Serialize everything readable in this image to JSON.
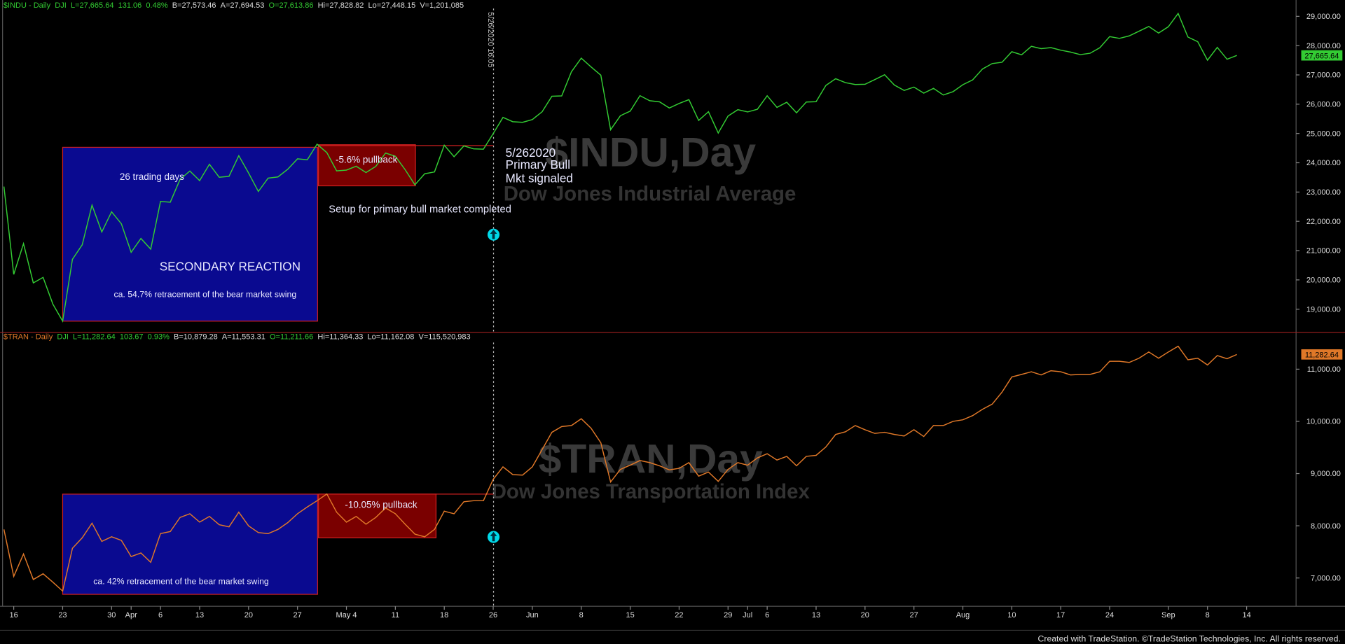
{
  "chart_data": [
    {
      "type": "line",
      "header": [
        "$INDU - Daily",
        "DJI",
        "L=27,665.64",
        "131.06",
        "0.48%",
        "B=27,573.46",
        "A=27,694.53",
        "O=27,613.86",
        "Hi=27,828.82",
        "Lo=27,448.15",
        "V=1,201,085"
      ],
      "watermark_title": "$INDU,Day",
      "watermark_subtitle": "Dow Jones Industrial Average",
      "color": "#33cc33",
      "values": [
        23186,
        20189,
        21237,
        19899,
        20087,
        19174,
        18592,
        20704,
        21200,
        22552,
        21637,
        22327,
        21917,
        20944,
        21413,
        21052,
        22680,
        22654,
        23434,
        23719,
        23390,
        23949,
        23504,
        23538,
        24242,
        23650,
        23019,
        23475,
        23516,
        23775,
        24134,
        24101,
        24634,
        24346,
        23724,
        23750,
        23883,
        23665,
        23875,
        24331,
        24222,
        23765,
        23248,
        23625,
        23685,
        24597,
        24207,
        24576,
        24475,
        24465,
        24995,
        25548,
        25401,
        25383,
        25475,
        25743,
        26270,
        26282,
        27111,
        27572,
        27273,
        26990,
        25128,
        25606,
        25763,
        26290,
        26120,
        26080,
        25871,
        26025,
        26156,
        25446,
        25745,
        25016,
        25596,
        25813,
        25735,
        25827,
        26287,
        25890,
        26067,
        25706,
        26075,
        26086,
        26643,
        26870,
        26735,
        26672,
        26681,
        26840,
        27006,
        26653,
        26470,
        26585,
        26380,
        26540,
        26314,
        26428,
        26665,
        26828,
        27202,
        27387,
        27433,
        27791,
        27687,
        27977,
        27897,
        27931,
        27845,
        27779,
        27693,
        27740,
        27930,
        28308,
        28249,
        28332,
        28493,
        28654,
        28430,
        28646,
        29100,
        28293,
        28133,
        27501,
        27941,
        27535,
        27665.64,
        null
      ],
      "last_value": 27665.64,
      "last_label": "27,665.64",
      "ylim": [
        18270,
        29470
      ],
      "yticks": [
        {
          "value": 19000,
          "label": "19,000.00"
        },
        {
          "value": 20000,
          "label": "20,000.00"
        },
        {
          "value": 21000,
          "label": "21,000.00"
        },
        {
          "value": 22000,
          "label": "22,000.00"
        },
        {
          "value": 23000,
          "label": "23,000.00"
        },
        {
          "value": 24000,
          "label": "24,000.00"
        },
        {
          "value": 25000,
          "label": "25,000.00"
        },
        {
          "value": 26000,
          "label": "26,000.00"
        },
        {
          "value": 27000,
          "label": "27,000.00"
        },
        {
          "value": 28000,
          "label": "28,000.00"
        },
        {
          "value": 29000,
          "label": "29,000.00"
        }
      ],
      "annotations": {
        "days": "26 trading days",
        "reaction": "SECONDARY REACTION",
        "retracement": "ca. 54.7% retracement of the bear market swing",
        "pullback": "-5.6% pullback",
        "signal": [
          "5/262020",
          "Primary Bull",
          "Mkt signaled"
        ],
        "setup": "Setup for primary bull market completed",
        "timestamp": "5/26/2020 16:05"
      }
    },
    {
      "type": "line",
      "header": [
        "$TRAN - Daily",
        "DJI",
        "L=11,282.64",
        "103.67",
        "0.93%",
        "B=10,879.28",
        "A=11,553.31",
        "O=11,211.66",
        "Hi=11,364.33",
        "Lo=11,162.08",
        "V=115,520,983"
      ],
      "watermark_title": "$TRAN,Day",
      "watermark_subtitle": "Dow Jones Transportation Index",
      "color": "#e07828",
      "categories": [
        null,
        "16",
        null,
        null,
        null,
        null,
        "23",
        null,
        null,
        null,
        null,
        "30",
        null,
        "Apr",
        null,
        null,
        "6",
        null,
        null,
        null,
        "13",
        null,
        null,
        null,
        null,
        "20",
        null,
        null,
        null,
        null,
        "27",
        null,
        null,
        null,
        null,
        "May 4",
        null,
        null,
        null,
        null,
        "11",
        null,
        null,
        null,
        null,
        "18",
        null,
        null,
        null,
        null,
        "26",
        null,
        null,
        null,
        "Jun",
        null,
        null,
        null,
        null,
        "8",
        null,
        null,
        null,
        null,
        "15",
        null,
        null,
        null,
        null,
        "22",
        null,
        null,
        null,
        null,
        "29",
        null,
        "Jul",
        null,
        "6",
        null,
        null,
        null,
        null,
        "13",
        null,
        null,
        null,
        null,
        "20",
        null,
        null,
        null,
        null,
        "27",
        null,
        null,
        null,
        null,
        "Aug",
        null,
        null,
        null,
        null,
        "10",
        null,
        null,
        null,
        null,
        "17",
        null,
        null,
        null,
        null,
        "24",
        null,
        null,
        null,
        null,
        null,
        "Sep",
        null,
        null,
        null,
        "8",
        null,
        null,
        null,
        "14"
      ],
      "values": [
        7930,
        7030,
        7460,
        6970,
        7080,
        6920,
        6750,
        7570,
        7770,
        8050,
        7700,
        7790,
        7720,
        7410,
        7480,
        7300,
        7850,
        7890,
        8160,
        8230,
        8070,
        8180,
        8020,
        7980,
        8260,
        8000,
        7870,
        7850,
        7930,
        8060,
        8230,
        8360,
        8480,
        8610,
        8260,
        8070,
        8180,
        8030,
        8160,
        8340,
        8230,
        8030,
        7840,
        7790,
        7930,
        8280,
        8230,
        8460,
        8480,
        8480,
        8890,
        9130,
        8980,
        8970,
        9130,
        9460,
        9790,
        9900,
        9920,
        10050,
        9870,
        9590,
        8840,
        9080,
        9160,
        9250,
        9210,
        9150,
        9070,
        9100,
        9210,
        8950,
        9030,
        8850,
        9080,
        9210,
        9160,
        9300,
        9380,
        9260,
        9330,
        9150,
        9330,
        9350,
        9510,
        9750,
        9800,
        9920,
        9840,
        9770,
        9790,
        9750,
        9720,
        9840,
        9710,
        9920,
        9920,
        10000,
        10030,
        10110,
        10230,
        10330,
        10560,
        10850,
        10900,
        10950,
        10890,
        10970,
        10950,
        10890,
        10900,
        10900,
        10950,
        11150,
        11150,
        11130,
        11210,
        11330,
        11210,
        11330,
        11440,
        11180,
        11210,
        11080,
        11260,
        11200,
        11282.64,
        null
      ],
      "last_value": 11282.64,
      "last_label": "11,282.64",
      "ylim": [
        6490,
        11510
      ],
      "yticks": [
        {
          "value": 7000,
          "label": "7,000.00"
        },
        {
          "value": 8000,
          "label": "8,000.00"
        },
        {
          "value": 9000,
          "label": "9,000.00"
        },
        {
          "value": 10000,
          "label": "10,000.00"
        },
        {
          "value": 11000,
          "label": "11,000.00"
        }
      ],
      "annotations": {
        "retracement": "ca. 42% retracement of the bear market swing",
        "pullback": "-10.05% pullback"
      }
    }
  ],
  "footer": "Created with TradeStation. ©TradeStation Technologies, Inc. All rights reserved."
}
